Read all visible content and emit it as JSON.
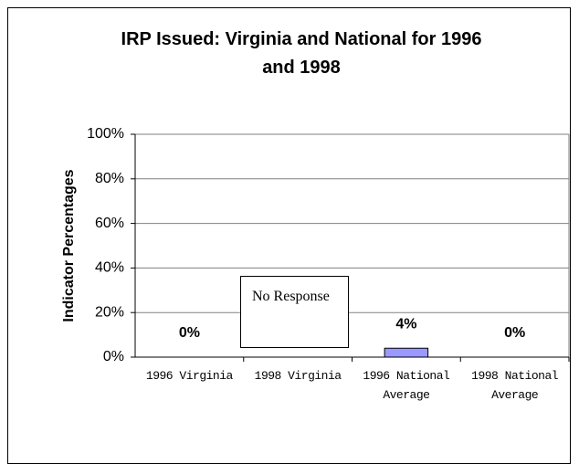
{
  "chart_data": {
    "type": "bar",
    "title": "IRP Issued: Virginia and National for 1996 and 1998",
    "y_label": "Indicator Percentages",
    "categories": [
      "1996 Virginia",
      "1998 Virginia",
      "1996 National Average",
      "1998 National Average"
    ],
    "values": [
      0,
      null,
      4,
      0
    ],
    "value_labels": [
      "0%",
      null,
      "4%",
      "0%"
    ],
    "annotation": "No Response",
    "color": "#9999ff",
    "ylim": [
      0,
      100
    ],
    "yticks": [
      {
        "value": 0,
        "label": "0%"
      },
      {
        "value": 20,
        "label": "20%"
      },
      {
        "value": 40,
        "label": "40%"
      },
      {
        "value": 60,
        "label": "60%"
      },
      {
        "value": 80,
        "label": "80%"
      },
      {
        "value": 100,
        "label": "100%"
      }
    ],
    "grid": true
  }
}
